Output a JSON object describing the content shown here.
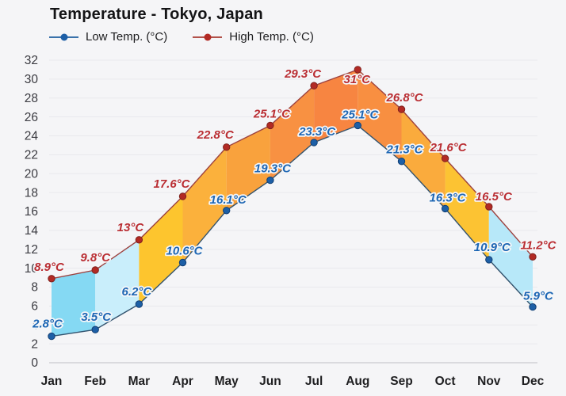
{
  "chart": {
    "title": "Temperature - Tokyo, Japan",
    "legend": {
      "low": "Low Temp. (°C)",
      "high": "High Temp. (°C)"
    }
  },
  "chart_data": {
    "type": "line",
    "title": "Temperature - Tokyo, Japan",
    "categories": [
      "Jan",
      "Feb",
      "Mar",
      "Apr",
      "May",
      "Jun",
      "Jul",
      "Aug",
      "Sep",
      "Oct",
      "Nov",
      "Dec"
    ],
    "series": [
      {
        "name": "Low Temp. (°C)",
        "values": [
          2.8,
          3.5,
          6.2,
          10.6,
          16.1,
          19.3,
          23.3,
          25.1,
          21.3,
          16.3,
          10.9,
          5.9
        ],
        "labels": [
          "2.8°C",
          "3.5°C",
          "6.2°C",
          "10.6°C",
          "16.1°C",
          "19.3°C",
          "23.3°C",
          "25.1°C",
          "21.3°C",
          "16.3°C",
          "10.9°C",
          "5.9°C"
        ],
        "line_color": "#33536e",
        "point_color": "#1d5fa6",
        "point_edge_color": "#123f73",
        "label_color": "#1d66b4"
      },
      {
        "name": "High Temp. (°C)",
        "values": [
          8.9,
          9.8,
          13,
          17.6,
          22.8,
          25.1,
          29.3,
          31,
          26.8,
          21.6,
          16.5,
          11.2
        ],
        "labels": [
          "8.9°C",
          "9.8°C",
          "13°C",
          "17.6°C",
          "22.8°C",
          "25.1°C",
          "29.3°C",
          "31°C",
          "26.8°C",
          "21.6°C",
          "16.5°C",
          "11.2°C"
        ],
        "line_color": "#9d423f",
        "point_color": "#b22a24",
        "point_edge_color": "#7e221e",
        "label_color": "#ba2e33"
      }
    ],
    "band_colors": [
      "#85d9f3",
      "#c9eefb",
      "#fdc52e",
      "#fbb13c",
      "#f9a23d",
      "#f89142",
      "#f78541",
      "#f88f41",
      "#faab3d",
      "#fcc333",
      "#b7e8f9"
    ],
    "ylim": [
      0,
      32
    ],
    "ytick_step": 2,
    "yticks": [
      0,
      2,
      4,
      6,
      8,
      10,
      12,
      14,
      16,
      18,
      20,
      22,
      24,
      26,
      28,
      30,
      32
    ],
    "grid": true,
    "legend_position": "top-left",
    "background_color": "#f5f5f7",
    "grid_color": "#e9e9ed",
    "axis_line_color": "#bfbfc5",
    "tick_label_color": "#3a3a40",
    "month_label_color": "#1e1e20"
  }
}
